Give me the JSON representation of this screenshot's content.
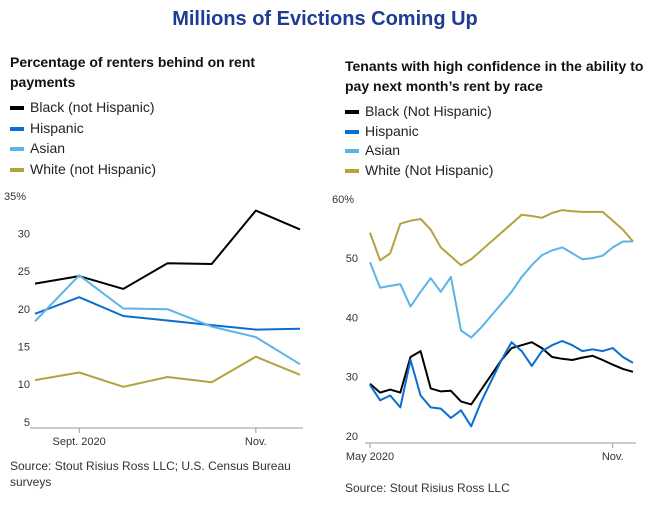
{
  "title": "Millions of Evictions Coming Up",
  "chart_data": [
    {
      "type": "line",
      "title": "Percentage of renters behind on rent payments",
      "source": "Source: Stout Risius Ross LLC; U.S. Census Bureau surveys",
      "categories": [
        null,
        "Sept. 2020",
        null,
        null,
        null,
        "Nov.",
        null
      ],
      "ylim": [
        5,
        35
      ],
      "yticks": [
        5,
        10,
        15,
        20,
        25,
        30,
        {
          "value": 35,
          "label": "35%"
        }
      ],
      "series": [
        {
          "name": "Black (not Hispanic)",
          "color": "#000000",
          "values": [
            23.5,
            24.5,
            22.8,
            26.2,
            26.1,
            33.2,
            30.7
          ]
        },
        {
          "name": "Hispanic",
          "color": "#0a6ed1",
          "values": [
            19.5,
            21.7,
            19.2,
            18.6,
            18.0,
            17.4,
            17.5
          ]
        },
        {
          "name": "Asian",
          "color": "#5ab4e8",
          "values": [
            18.5,
            24.6,
            20.2,
            20.1,
            17.8,
            16.4,
            12.8
          ]
        },
        {
          "name": "White (not Hispanic)",
          "color": "#b3a33f",
          "values": [
            10.7,
            11.7,
            9.8,
            11.1,
            10.4,
            13.8,
            11.4
          ]
        }
      ]
    },
    {
      "type": "line",
      "title": "Tenants with high confidence in the ability to pay next month’s rent by race",
      "source": "Source: Stout Risius Ross LLC",
      "categories": [
        "May 2020",
        null,
        null,
        null,
        null,
        null,
        null,
        null,
        null,
        null,
        null,
        null,
        null,
        null,
        null,
        null,
        null,
        null,
        null,
        null,
        null,
        null,
        null,
        null,
        "Nov.",
        null,
        null
      ],
      "ylim": [
        20,
        60
      ],
      "yticks": [
        20,
        30,
        40,
        50,
        {
          "value": 60,
          "label": "60%"
        }
      ],
      "series": [
        {
          "name": "Black (Not Hispanic)",
          "color": "#000000",
          "values": [
            29,
            27.5,
            28,
            27.5,
            33.5,
            34.5,
            28.2,
            27.7,
            27.8,
            26,
            25.5,
            28,
            30.5,
            33,
            35,
            35.5,
            36,
            35,
            33.5,
            33.2,
            33,
            33.4,
            33.7,
            33,
            32.2,
            31.5,
            31
          ]
        },
        {
          "name": "Hispanic",
          "color": "#0a6ed1",
          "values": [
            28.8,
            26.2,
            27,
            25,
            33,
            27,
            25,
            24.8,
            23.2,
            24.5,
            21.8,
            26,
            29.5,
            33,
            36,
            34.5,
            32,
            34.5,
            35.5,
            36.2,
            35.5,
            34.5,
            34.8,
            34.5,
            35,
            33.5,
            32.5
          ]
        },
        {
          "name": "Asian",
          "color": "#5ab4e8",
          "values": [
            49.5,
            45.2,
            45.5,
            45.8,
            42,
            44.5,
            46.8,
            44.5,
            47,
            38,
            36.8,
            38.5,
            40.5,
            42.5,
            44.5,
            47,
            49,
            50.7,
            51.5,
            52,
            51,
            50,
            50.2,
            50.6,
            52,
            53,
            53
          ]
        },
        {
          "name": "White (Not Hispanic)",
          "color": "#b3a33f",
          "values": [
            54.5,
            49.8,
            51,
            56,
            56.5,
            56.8,
            55,
            52,
            50.5,
            49,
            50,
            51.5,
            53,
            54.5,
            56,
            57.5,
            57.3,
            57,
            57.8,
            58.3,
            58.1,
            58,
            58,
            58,
            56.5,
            55,
            53
          ]
        }
      ]
    }
  ]
}
